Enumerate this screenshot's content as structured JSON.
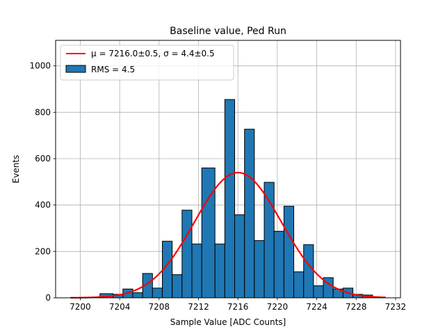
{
  "chart_data": {
    "type": "bar",
    "title": "Baseline value, Ped Run",
    "xlabel": "Sample Value [ADC Counts]",
    "ylabel": "Events",
    "xlim": [
      7197.5,
      7232.5
    ],
    "ylim": [
      0,
      1110
    ],
    "grid": true,
    "legend_position": "top-left",
    "xticks": [
      7200,
      7204,
      7208,
      7212,
      7216,
      7220,
      7224,
      7228,
      7232
    ],
    "yticks": [
      0,
      200,
      400,
      600,
      800,
      1000
    ],
    "histogram": {
      "name": "RMS = 4.5",
      "color": "#1f77b4",
      "edge_color": "#000000",
      "bins": [
        {
          "x0": 7202.0,
          "x1": 7203.33,
          "count": 18
        },
        {
          "x0": 7203.33,
          "x1": 7204.33,
          "count": 15
        },
        {
          "x0": 7204.33,
          "x1": 7205.33,
          "count": 38
        },
        {
          "x0": 7205.33,
          "x1": 7206.33,
          "count": 22
        },
        {
          "x0": 7206.33,
          "x1": 7207.33,
          "count": 105
        },
        {
          "x0": 7207.33,
          "x1": 7208.33,
          "count": 42
        },
        {
          "x0": 7208.33,
          "x1": 7209.33,
          "count": 244
        },
        {
          "x0": 7209.33,
          "x1": 7210.33,
          "count": 100
        },
        {
          "x0": 7210.33,
          "x1": 7211.33,
          "count": 378
        },
        {
          "x0": 7211.33,
          "x1": 7212.33,
          "count": 232
        },
        {
          "x0": 7212.33,
          "x1": 7213.67,
          "count": 560
        },
        {
          "x0": 7213.67,
          "x1": 7214.67,
          "count": 232
        },
        {
          "x0": 7214.67,
          "x1": 7215.67,
          "count": 855
        },
        {
          "x0": 7215.67,
          "x1": 7216.67,
          "count": 358
        },
        {
          "x0": 7216.67,
          "x1": 7217.67,
          "count": 727
        },
        {
          "x0": 7217.67,
          "x1": 7218.67,
          "count": 247
        },
        {
          "x0": 7218.67,
          "x1": 7219.67,
          "count": 498
        },
        {
          "x0": 7219.67,
          "x1": 7220.67,
          "count": 287
        },
        {
          "x0": 7220.67,
          "x1": 7221.67,
          "count": 395
        },
        {
          "x0": 7221.67,
          "x1": 7222.67,
          "count": 112
        },
        {
          "x0": 7222.67,
          "x1": 7223.67,
          "count": 229
        },
        {
          "x0": 7223.67,
          "x1": 7224.67,
          "count": 52
        },
        {
          "x0": 7224.67,
          "x1": 7225.67,
          "count": 87
        },
        {
          "x0": 7225.67,
          "x1": 7226.67,
          "count": 38
        },
        {
          "x0": 7226.67,
          "x1": 7227.67,
          "count": 42
        },
        {
          "x0": 7227.67,
          "x1": 7228.67,
          "count": 15
        },
        {
          "x0": 7228.67,
          "x1": 7229.67,
          "count": 12
        }
      ]
    },
    "fit": {
      "name": "$\\mu = 7216.0{\\pm}0.5$, $\\sigma = 4.4{\\pm}0.5$",
      "legend_label": "μ = 7216.0±0.5, σ = 4.4±0.5",
      "color": "#ff0000",
      "mu": 7216.0,
      "sigma": 4.4,
      "amplitude": 540,
      "x_range": [
        7199,
        7231
      ]
    }
  }
}
